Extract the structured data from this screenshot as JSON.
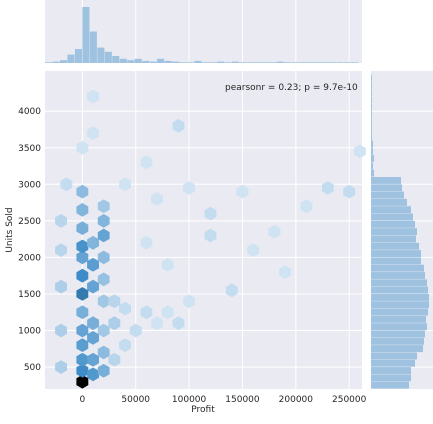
{
  "chart_data": {
    "type": "hexbin-jointplot",
    "xlabel": "Profit",
    "ylabel": "Units Sold",
    "annotation": "pearsonr = 0.23; p = 9.7e-10",
    "xlim": [
      -35000,
      262000
    ],
    "ylim": [
      200,
      4550
    ],
    "xticks": [
      0,
      50000,
      100000,
      150000,
      200000,
      250000
    ],
    "yticks": [
      500,
      1000,
      1500,
      2000,
      2500,
      3000,
      3500,
      4000
    ],
    "hex_gridsize_x": 28,
    "colors": {
      "background": "#eaeaf2",
      "grid": "#ffffff",
      "hex_max": "#000000",
      "hex_mid": "#3a8ac6",
      "hex_low": "#eef5fc",
      "marginal": "#9ec2e0"
    },
    "hexbins": [
      {
        "x": 0,
        "y": 300,
        "count": 30
      },
      {
        "x": 0,
        "y": 450,
        "count": 16
      },
      {
        "x": 0,
        "y": 600,
        "count": 14
      },
      {
        "x": 0,
        "y": 800,
        "count": 13
      },
      {
        "x": 0,
        "y": 1000,
        "count": 12
      },
      {
        "x": 0,
        "y": 1250,
        "count": 10
      },
      {
        "x": 0,
        "y": 1500,
        "count": 18
      },
      {
        "x": 0,
        "y": 1750,
        "count": 16
      },
      {
        "x": 0,
        "y": 2000,
        "count": 12
      },
      {
        "x": 0,
        "y": 2150,
        "count": 15
      },
      {
        "x": 0,
        "y": 2400,
        "count": 10
      },
      {
        "x": 0,
        "y": 2650,
        "count": 9
      },
      {
        "x": 0,
        "y": 2900,
        "count": 8
      },
      {
        "x": 10000,
        "y": 400,
        "count": 14
      },
      {
        "x": 10000,
        "y": 600,
        "count": 12
      },
      {
        "x": 10000,
        "y": 900,
        "count": 12
      },
      {
        "x": 10000,
        "y": 1100,
        "count": 10
      },
      {
        "x": 10000,
        "y": 1600,
        "count": 12
      },
      {
        "x": 10000,
        "y": 1900,
        "count": 13
      },
      {
        "x": 10000,
        "y": 2200,
        "count": 9
      },
      {
        "x": 20000,
        "y": 450,
        "count": 10
      },
      {
        "x": 20000,
        "y": 700,
        "count": 8
      },
      {
        "x": 20000,
        "y": 1000,
        "count": 6
      },
      {
        "x": 20000,
        "y": 1400,
        "count": 6
      },
      {
        "x": 20000,
        "y": 1700,
        "count": 7
      },
      {
        "x": 20000,
        "y": 2000,
        "count": 8
      },
      {
        "x": 20000,
        "y": 2300,
        "count": 12
      },
      {
        "x": 20000,
        "y": 2500,
        "count": 9
      },
      {
        "x": 20000,
        "y": 2700,
        "count": 6
      },
      {
        "x": -20000,
        "y": 500,
        "count": 5
      },
      {
        "x": -20000,
        "y": 1000,
        "count": 5
      },
      {
        "x": -20000,
        "y": 1600,
        "count": 5
      },
      {
        "x": -20000,
        "y": 2100,
        "count": 4
      },
      {
        "x": -20000,
        "y": 2500,
        "count": 4
      },
      {
        "x": -15000,
        "y": 3000,
        "count": 3
      },
      {
        "x": 30000,
        "y": 600,
        "count": 4
      },
      {
        "x": 30000,
        "y": 1100,
        "count": 5
      },
      {
        "x": 30000,
        "y": 1400,
        "count": 4
      },
      {
        "x": 40000,
        "y": 800,
        "count": 3
      },
      {
        "x": 40000,
        "y": 1300,
        "count": 3
      },
      {
        "x": 50000,
        "y": 1000,
        "count": 3
      },
      {
        "x": 60000,
        "y": 1250,
        "count": 3
      },
      {
        "x": 70000,
        "y": 1100,
        "count": 2
      },
      {
        "x": 80000,
        "y": 1250,
        "count": 2
      },
      {
        "x": 90000,
        "y": 1100,
        "count": 3
      },
      {
        "x": 100000,
        "y": 1400,
        "count": 2
      },
      {
        "x": 120000,
        "y": 2300,
        "count": 3
      },
      {
        "x": 120000,
        "y": 2600,
        "count": 3
      },
      {
        "x": 140000,
        "y": 1550,
        "count": 3
      },
      {
        "x": 150000,
        "y": 2900,
        "count": 2
      },
      {
        "x": 160000,
        "y": 2100,
        "count": 2
      },
      {
        "x": 180000,
        "y": 2350,
        "count": 2
      },
      {
        "x": 190000,
        "y": 1800,
        "count": 2
      },
      {
        "x": 210000,
        "y": 2700,
        "count": 2
      },
      {
        "x": 230000,
        "y": 2950,
        "count": 3
      },
      {
        "x": 250000,
        "y": 2900,
        "count": 3
      },
      {
        "x": 260000,
        "y": 3450,
        "count": 2
      },
      {
        "x": 90000,
        "y": 3800,
        "count": 3
      },
      {
        "x": 10000,
        "y": 3700,
        "count": 2
      },
      {
        "x": 10000,
        "y": 4200,
        "count": 2
      },
      {
        "x": 0,
        "y": 3500,
        "count": 2
      },
      {
        "x": 60000,
        "y": 3300,
        "count": 2
      },
      {
        "x": 40000,
        "y": 3000,
        "count": 2
      },
      {
        "x": 70000,
        "y": 2800,
        "count": 2
      },
      {
        "x": 100000,
        "y": 2950,
        "count": 2
      },
      {
        "x": 60000,
        "y": 2200,
        "count": 2
      },
      {
        "x": 80000,
        "y": 1900,
        "count": 2
      }
    ],
    "x_marginal_hist": {
      "bin_edges": [
        -35000,
        -28000,
        -21000,
        -14000,
        -7000,
        0,
        7000,
        14000,
        21000,
        28000,
        35000,
        42000,
        49000,
        56000,
        63000,
        70000,
        77000,
        84000,
        91000,
        98000,
        105000,
        112000,
        119000,
        126000,
        133000,
        140000,
        147000,
        154000,
        161000,
        168000,
        175000,
        182000,
        189000,
        196000,
        203000,
        210000,
        217000,
        224000,
        231000,
        238000,
        245000,
        252000,
        259000
      ],
      "counts": [
        1,
        2,
        4,
        12,
        20,
        80,
        45,
        22,
        16,
        10,
        6,
        4,
        6,
        3,
        2,
        6,
        3,
        2,
        1,
        1,
        3,
        1,
        1,
        2,
        1,
        2,
        1,
        1,
        1,
        1,
        1,
        2,
        1,
        1,
        1,
        1,
        1,
        1,
        1,
        1,
        1,
        1
      ]
    },
    "y_marginal_hist": {
      "bin_edges": [
        200,
        300,
        400,
        500,
        600,
        700,
        800,
        900,
        1000,
        1100,
        1200,
        1300,
        1400,
        1500,
        1600,
        1700,
        1800,
        1900,
        2000,
        2100,
        2200,
        2300,
        2400,
        2500,
        2600,
        2700,
        2800,
        2900,
        3000,
        3100,
        3200,
        3300,
        3400,
        3500,
        3600,
        3700,
        3800,
        3900,
        4000,
        4100,
        4200,
        4300,
        4400,
        4500
      ],
      "counts": [
        38,
        40,
        40,
        44,
        46,
        52,
        53,
        54,
        56,
        55,
        57,
        58,
        58,
        57,
        56,
        54,
        53,
        50,
        50,
        48,
        45,
        46,
        44,
        42,
        40,
        36,
        33,
        31,
        30,
        3,
        2,
        3,
        2,
        2,
        1,
        1,
        1,
        1,
        1,
        1,
        1,
        1,
        1
      ]
    }
  }
}
